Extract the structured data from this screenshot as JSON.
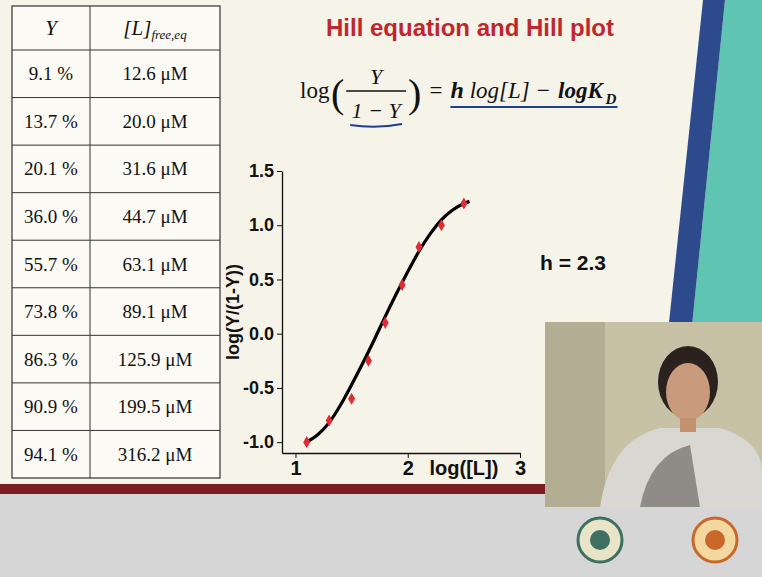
{
  "table": {
    "header": [
      {
        "text": "Y"
      },
      {
        "text": "[L]",
        "sub": "free,eq"
      }
    ],
    "rows": [
      [
        "9.1 %",
        "12.6 μM"
      ],
      [
        "13.7 %",
        "20.0 μM"
      ],
      [
        "20.1 %",
        "31.6 μM"
      ],
      [
        "36.0 %",
        "44.7 μM"
      ],
      [
        "55.7 %",
        "63.1 μM"
      ],
      [
        "73.8 %",
        "89.1 μM"
      ],
      [
        "86.3 %",
        "125.9 μM"
      ],
      [
        "90.9 %",
        "199.5 μM"
      ],
      [
        "94.1 %",
        "316.2 μM"
      ]
    ]
  },
  "equation": {
    "lhs": "log",
    "open": "(",
    "numerator": "Y",
    "denominator": "1 − Y",
    "close": ")",
    "equals": "=",
    "h": "h",
    "term": "log[L] −",
    "constant": "logK",
    "constant_sub": "D"
  },
  "chart_data": {
    "type": "scatter",
    "title": "Hill equation and Hill plot",
    "x_label": "log([L])",
    "y_label": "log(Y/(1-Y))",
    "xlim": [
      0.88,
      3
    ],
    "ylim": [
      -1.1,
      1.5
    ],
    "xticks": [
      1,
      2,
      3
    ],
    "yticks": [
      {
        "value": -1,
        "label": "-1.0"
      },
      -0.5,
      {
        "value": 0,
        "label": "0.0"
      },
      0.5,
      {
        "value": 1,
        "label": "1.0"
      },
      1.5
    ],
    "grid": false,
    "annotations": [
      {
        "text": "h = 2.3"
      }
    ],
    "series": [
      {
        "type": "scatter",
        "color": "#e02b35",
        "marker": "diamond",
        "x": [
          1.1,
          1.3,
          1.5,
          1.65,
          1.8,
          1.95,
          2.1,
          2.3,
          2.5
        ],
        "values": [
          -1.0,
          -0.8,
          -0.6,
          -0.25,
          0.1,
          0.45,
          0.8,
          1.0,
          1.2
        ]
      },
      {
        "type": "line",
        "color": "#000000",
        "line_style": "solid",
        "marker": "none",
        "x": [
          1.1,
          1.2,
          1.3,
          1.4,
          1.5,
          1.6,
          1.7,
          1.8,
          1.9,
          2.0,
          2.1,
          2.2,
          2.3,
          2.4,
          2.5,
          2.55
        ],
        "values": [
          -1.0,
          -0.93,
          -0.82,
          -0.66,
          -0.47,
          -0.27,
          -0.06,
          0.16,
          0.37,
          0.57,
          0.76,
          0.92,
          1.05,
          1.14,
          1.2,
          1.22
        ]
      }
    ]
  }
}
